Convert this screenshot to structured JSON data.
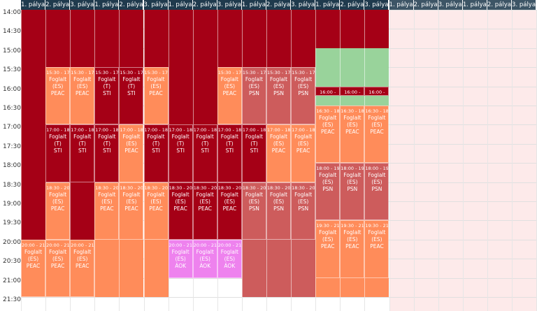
{
  "colors": {
    "darkred": "#a50016",
    "orange": "#ff8c5a",
    "rose": "#cd5c5c",
    "green": "#99d39b",
    "violet": "#ee82ee",
    "white": "#ffffff",
    "pink": "#fdeaea",
    "header": "#1f3a4d"
  },
  "header": {
    "columns": [
      "1. pálya",
      "2. pálya",
      "3. pálya",
      "1. pálya",
      "2. pálya",
      "3. pálya",
      "1. pálya",
      "2. pálya",
      "3. pálya",
      "1. pálya",
      "2. pálya",
      "3. pálya",
      "1. pálya",
      "2. pálya",
      "3. pálya",
      "1. pálya",
      "2. pálya",
      "3. pálya",
      "1. pálya",
      "2. pálya",
      "3. pálya"
    ]
  },
  "times": [
    "14:00",
    "14:30",
    "15:00",
    "15:30",
    "16:00",
    "16:30",
    "17:00",
    "17:30",
    "18:00",
    "18:30",
    "19:00",
    "19:30",
    "20:00",
    "20:30",
    "21:00",
    "21:30"
  ],
  "blocks": [
    {
      "col": 0,
      "start": "14:00",
      "end": "20:00",
      "color": "darkred"
    },
    {
      "col": 1,
      "start": "14:00",
      "end": "15:30",
      "color": "darkred"
    },
    {
      "col": 2,
      "start": "14:00",
      "end": "15:30",
      "color": "darkred"
    },
    {
      "col": 3,
      "start": "14:00",
      "end": "15:30",
      "color": "darkred"
    },
    {
      "col": 4,
      "start": "14:00",
      "end": "15:30",
      "color": "darkred"
    },
    {
      "col": 5,
      "start": "14:00",
      "end": "15:30",
      "color": "darkred"
    },
    {
      "col": 6,
      "start": "14:00",
      "end": "18:30",
      "color": "darkred"
    },
    {
      "col": 7,
      "start": "14:00",
      "end": "18:30",
      "color": "darkred"
    },
    {
      "col": 8,
      "start": "14:00",
      "end": "15:30",
      "color": "darkred"
    },
    {
      "col": 9,
      "start": "14:00",
      "end": "15:30",
      "color": "darkred"
    },
    {
      "col": 10,
      "start": "14:00",
      "end": "15:30",
      "color": "darkred"
    },
    {
      "col": 11,
      "start": "14:00",
      "end": "15:30",
      "color": "darkred"
    },
    {
      "col": 12,
      "start": "14:00",
      "end": "15:00",
      "color": "darkred"
    },
    {
      "col": 13,
      "start": "14:00",
      "end": "15:00",
      "color": "darkred"
    },
    {
      "col": 14,
      "start": "14:00",
      "end": "15:00",
      "color": "darkred"
    },
    {
      "col": 12,
      "start": "15:00",
      "end": "16:00",
      "color": "green"
    },
    {
      "col": 13,
      "start": "15:00",
      "end": "16:00",
      "color": "green"
    },
    {
      "col": 14,
      "start": "15:00",
      "end": "16:00",
      "color": "green"
    },
    {
      "col": 12,
      "start": "16:15",
      "end": "16:30",
      "color": "green"
    },
    {
      "col": 13,
      "start": "16:15",
      "end": "16:30",
      "color": "green"
    },
    {
      "col": 14,
      "start": "16:15",
      "end": "16:30",
      "color": "green"
    },
    {
      "col": 9,
      "start": "15:30",
      "end": "18:00",
      "color": "rose"
    },
    {
      "col": 9,
      "start": "18:30",
      "end": "21:30",
      "color": "rose"
    },
    {
      "col": 12,
      "start": "20:00",
      "end": "21:30",
      "color": "orange"
    },
    {
      "col": 13,
      "start": "20:00",
      "end": "21:30",
      "color": "orange"
    },
    {
      "col": 14,
      "start": "20:00",
      "end": "21:30",
      "color": "orange"
    },
    {
      "col": 3,
      "start": "15:30",
      "end": "17:00",
      "color": "darkred"
    },
    {
      "col": 3,
      "start": "18:30",
      "end": "21:30",
      "color": "orange"
    },
    {
      "col": 5,
      "start": "18:30",
      "end": "21:30",
      "color": "orange"
    },
    {
      "col": 4,
      "start": "18:30",
      "end": "21:30",
      "color": "orange"
    },
    {
      "col": 2,
      "start": "18:30",
      "end": "20:00",
      "color": "darkred"
    },
    {
      "col": 1,
      "start": "18:30",
      "end": "20:00",
      "color": "orange"
    },
    {
      "col": 10,
      "start": "20:00",
      "end": "21:30",
      "color": "rose"
    },
    {
      "col": 11,
      "start": "20:00",
      "end": "21:30",
      "color": "rose"
    },
    {
      "col": 10,
      "start": "17:00",
      "end": "18:30",
      "color": "orange"
    },
    {
      "col": 11,
      "start": "17:00",
      "end": "18:30",
      "color": "orange"
    }
  ],
  "bookings": [
    {
      "col": 1,
      "start": "15:30",
      "end": "17:00",
      "color": "orange",
      "time": "15:30 - 17:00",
      "name": "Foglalt",
      "code": "(ES)",
      "tag": "PEAC"
    },
    {
      "col": 2,
      "start": "15:30",
      "end": "17:00",
      "color": "orange",
      "time": "15:30 - 17:00",
      "name": "Foglalt",
      "code": "(ES)",
      "tag": "PEAC"
    },
    {
      "col": 3,
      "start": "15:30",
      "end": "17:00",
      "color": "darkred",
      "time": "15:30 - 17:00",
      "name": "Foglalt",
      "code": "(T)",
      "tag": "STI"
    },
    {
      "col": 4,
      "start": "15:30",
      "end": "17:00",
      "color": "darkred",
      "time": "15:30 - 17:00",
      "name": "Foglalt",
      "code": "(T)",
      "tag": "STI"
    },
    {
      "col": 5,
      "start": "15:30",
      "end": "17:00",
      "color": "orange",
      "time": "15:30 - 17:00",
      "name": "Foglalt",
      "code": "(ES)",
      "tag": "PEAC"
    },
    {
      "col": 8,
      "start": "15:30",
      "end": "17:00",
      "color": "orange",
      "time": "15:30 - 17:00",
      "name": "Foglalt",
      "code": "(ES)",
      "tag": "PEAC"
    },
    {
      "col": 9,
      "start": "15:30",
      "end": "17:00",
      "color": "rose",
      "time": "15:30 - 17:00",
      "name": "Foglalt",
      "code": "(ES)",
      "tag": "PSN"
    },
    {
      "col": 10,
      "start": "15:30",
      "end": "17:00",
      "color": "rose",
      "time": "15:30 - 17:00",
      "name": "Foglalt",
      "code": "(ES)",
      "tag": "PSN"
    },
    {
      "col": 11,
      "start": "15:30",
      "end": "17:00",
      "color": "rose",
      "time": "15:30 - 17:00",
      "name": "Foglalt",
      "code": "(ES)",
      "tag": "PSN"
    },
    {
      "col": 12,
      "start": "16:00",
      "end": "16:15",
      "color": "darkred",
      "time": "16:00 -",
      "name": "",
      "code": "",
      "tag": ""
    },
    {
      "col": 13,
      "start": "16:00",
      "end": "16:15",
      "color": "darkred",
      "time": "16:00 -",
      "name": "",
      "code": "",
      "tag": ""
    },
    {
      "col": 14,
      "start": "16:00",
      "end": "16:15",
      "color": "darkred",
      "time": "16:00 -",
      "name": "",
      "code": "",
      "tag": ""
    },
    {
      "col": 12,
      "start": "16:30",
      "end": "18:00",
      "color": "orange",
      "time": "16:30 - 18:00",
      "name": "Foglalt",
      "code": "(ES)",
      "tag": "PEAC"
    },
    {
      "col": 13,
      "start": "16:30",
      "end": "18:00",
      "color": "orange",
      "time": "16:30 - 18:00",
      "name": "Foglalt",
      "code": "(ES)",
      "tag": "PEAC"
    },
    {
      "col": 14,
      "start": "16:30",
      "end": "18:00",
      "color": "orange",
      "time": "16:30 - 18:00",
      "name": "Foglalt",
      "code": "(ES)",
      "tag": "PEAC"
    },
    {
      "col": 1,
      "start": "17:00",
      "end": "18:30",
      "color": "darkred",
      "time": "17:00 - 18:30",
      "name": "Foglalt",
      "code": "(T)",
      "tag": "STI"
    },
    {
      "col": 2,
      "start": "17:00",
      "end": "18:30",
      "color": "darkred",
      "time": "17:00 - 18:30",
      "name": "Foglalt",
      "code": "(T)",
      "tag": "STI"
    },
    {
      "col": 3,
      "start": "17:00",
      "end": "18:30",
      "color": "darkred",
      "time": "17:00 - 18:30",
      "name": "Foglalt",
      "code": "(T)",
      "tag": "STI"
    },
    {
      "col": 4,
      "start": "17:00",
      "end": "18:30",
      "color": "orange",
      "time": "17:00 - 18:30",
      "name": "Foglalt",
      "code": "(ES)",
      "tag": "PEAC"
    },
    {
      "col": 5,
      "start": "17:00",
      "end": "18:30",
      "color": "darkred",
      "time": "17:00 - 18:30",
      "name": "Foglalt",
      "code": "(T)",
      "tag": "STI"
    },
    {
      "col": 6,
      "start": "17:00",
      "end": "18:30",
      "color": "darkred",
      "time": "17:00 - 18:30",
      "name": "Foglalt",
      "code": "(T)",
      "tag": "STI"
    },
    {
      "col": 7,
      "start": "17:00",
      "end": "18:30",
      "color": "darkred",
      "time": "17:00 - 18:30",
      "name": "Foglalt",
      "code": "(T)",
      "tag": "STI"
    },
    {
      "col": 8,
      "start": "17:00",
      "end": "18:30",
      "color": "darkred",
      "time": "17:00 - 18:30",
      "name": "Foglalt",
      "code": "(T)",
      "tag": "STI"
    },
    {
      "col": 9,
      "start": "17:00",
      "end": "18:30",
      "color": "darkred",
      "time": "17:00 - 18:30",
      "name": "Foglalt",
      "code": "(T)",
      "tag": "STI"
    },
    {
      "col": 10,
      "start": "17:00",
      "end": "18:30",
      "color": "orange",
      "time": "17:00 - 18:30",
      "name": "Foglalt",
      "code": "(ES)",
      "tag": "PEAC"
    },
    {
      "col": 11,
      "start": "17:00",
      "end": "18:30",
      "color": "orange",
      "time": "17:00 - 18:30",
      "name": "Foglalt",
      "code": "(ES)",
      "tag": "PEAC"
    },
    {
      "col": 12,
      "start": "18:00",
      "end": "19:30",
      "color": "rose",
      "time": "18:00 - 19:30",
      "name": "Foglalt",
      "code": "(ES)",
      "tag": "PSN"
    },
    {
      "col": 13,
      "start": "18:00",
      "end": "19:30",
      "color": "rose",
      "time": "18:00 - 19:30",
      "name": "Foglalt",
      "code": "(ES)",
      "tag": "PSN"
    },
    {
      "col": 14,
      "start": "18:00",
      "end": "19:30",
      "color": "rose",
      "time": "18:00 - 19:30",
      "name": "Foglalt",
      "code": "(ES)",
      "tag": "PSN"
    },
    {
      "col": 1,
      "start": "18:30",
      "end": "20:00",
      "color": "orange",
      "time": "18:30 - 20:00",
      "name": "Foglalt",
      "code": "(ES)",
      "tag": "PEAC"
    },
    {
      "col": 3,
      "start": "18:30",
      "end": "20:00",
      "color": "orange",
      "time": "18:30 - 20:00",
      "name": "Foglalt",
      "code": "(ES)",
      "tag": "PEAC"
    },
    {
      "col": 4,
      "start": "18:30",
      "end": "20:00",
      "color": "orange",
      "time": "18:30 - 20:00",
      "name": "Foglalt",
      "code": "(ES)",
      "tag": "PEAC"
    },
    {
      "col": 5,
      "start": "18:30",
      "end": "20:00",
      "color": "orange",
      "time": "18:30 - 20:00",
      "name": "Foglalt",
      "code": "(ES)",
      "tag": "PEAC"
    },
    {
      "col": 6,
      "start": "18:30",
      "end": "20:00",
      "color": "darkred",
      "time": "18:30 - 20:00",
      "name": "Foglalt",
      "code": "(ES)",
      "tag": "PEAC"
    },
    {
      "col": 7,
      "start": "18:30",
      "end": "20:00",
      "color": "darkred",
      "time": "18:30 - 20:00",
      "name": "Foglalt",
      "code": "(ES)",
      "tag": "PEAC"
    },
    {
      "col": 8,
      "start": "18:30",
      "end": "20:00",
      "color": "darkred",
      "time": "18:30 - 20:00",
      "name": "Foglalt",
      "code": "(ES)",
      "tag": "PEAC"
    },
    {
      "col": 9,
      "start": "18:30",
      "end": "20:00",
      "color": "rose",
      "time": "18:30 - 20:00",
      "name": "Foglalt",
      "code": "(ES)",
      "tag": "PSN"
    },
    {
      "col": 10,
      "start": "18:30",
      "end": "20:00",
      "color": "rose",
      "time": "18:30 - 20:00",
      "name": "Foglalt",
      "code": "(ES)",
      "tag": "PSN"
    },
    {
      "col": 11,
      "start": "18:30",
      "end": "20:00",
      "color": "rose",
      "time": "18:30 - 20:00",
      "name": "Foglalt",
      "code": "(ES)",
      "tag": "PSN"
    },
    {
      "col": 12,
      "start": "19:30",
      "end": "21:00",
      "color": "orange",
      "time": "19:30 - 21:00",
      "name": "Foglalt",
      "code": "(ES)",
      "tag": "PEAC"
    },
    {
      "col": 13,
      "start": "19:30",
      "end": "21:00",
      "color": "orange",
      "time": "19:30 - 21:00",
      "name": "Foglalt",
      "code": "(ES)",
      "tag": "PEAC"
    },
    {
      "col": 14,
      "start": "19:30",
      "end": "21:00",
      "color": "orange",
      "time": "19:30 - 21:00",
      "name": "Foglalt",
      "code": "(ES)",
      "tag": "PEAC"
    },
    {
      "col": 0,
      "start": "20:00",
      "end": "21:30",
      "color": "orange",
      "time": "20:00 - 21:30",
      "name": "Foglalt",
      "code": "(ES)",
      "tag": "PEAC"
    },
    {
      "col": 1,
      "start": "20:00",
      "end": "21:30",
      "color": "orange",
      "time": "20:00 - 21:30",
      "name": "Foglalt",
      "code": "(ES)",
      "tag": "PEAC"
    },
    {
      "col": 2,
      "start": "20:00",
      "end": "21:30",
      "color": "orange",
      "time": "20:00 - 21:30",
      "name": "Foglalt",
      "code": "(ES)",
      "tag": "PEAC"
    },
    {
      "col": 6,
      "start": "20:00",
      "end": "21:00",
      "color": "violet",
      "time": "20:00 - 21:00",
      "name": "Foglalt",
      "code": "(ES)",
      "tag": "ÁOK"
    },
    {
      "col": 7,
      "start": "20:00",
      "end": "21:00",
      "color": "violet",
      "time": "20:00 - 21:00",
      "name": "Foglalt",
      "code": "(ES)",
      "tag": "ÁOK"
    },
    {
      "col": 8,
      "start": "20:00",
      "end": "21:00",
      "color": "violet",
      "time": "20:00 - 21:00",
      "name": "Foglalt",
      "code": "(ES)",
      "tag": "ÁOK"
    }
  ]
}
